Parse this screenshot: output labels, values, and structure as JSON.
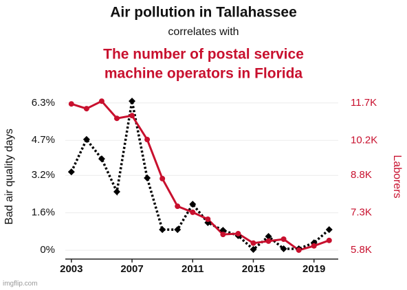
{
  "chart_data": {
    "type": "line",
    "title": "Air pollution in Tallahassee",
    "subtitle": "correlates with",
    "title2": [
      "The number of postal service",
      "machine operators in Florida"
    ],
    "ylabel": "Bad air quality days",
    "y2label": "Laborers",
    "watermark": "imgflip.com",
    "x": [
      2003,
      2004,
      2005,
      2006,
      2007,
      2008,
      2009,
      2010,
      2011,
      2012,
      2013,
      2014,
      2015,
      2016,
      2017,
      2018,
      2019,
      2020
    ],
    "xlim": [
      2002.6,
      2020.6
    ],
    "xticks": [
      2003,
      2007,
      2011,
      2015,
      2019
    ],
    "ylim": [
      -0.38,
      6.6
    ],
    "yticks": [
      {
        "value": 0,
        "label": "0%"
      },
      {
        "value": 1.6,
        "label": "1.6%"
      },
      {
        "value": 3.2,
        "label": "3.2%"
      },
      {
        "value": 4.7,
        "label": "4.7%"
      },
      {
        "value": 6.3,
        "label": "6.3%"
      }
    ],
    "y2lim": [
      5440,
      11990
    ],
    "y2ticks": [
      {
        "value": 5800,
        "label": "5.8K"
      },
      {
        "value": 7300,
        "label": "7.3K"
      },
      {
        "value": 8800,
        "label": "8.8K"
      },
      {
        "value": 10200,
        "label": "10.2K"
      },
      {
        "value": 11700,
        "label": "11.7K"
      }
    ],
    "grid": true,
    "series": [
      {
        "color": "#000000",
        "marker": "diamond",
        "dashed": true,
        "values": [
          3.35,
          4.74,
          3.91,
          2.5,
          6.38,
          3.09,
          0.88,
          0.88,
          1.97,
          1.18,
          0.85,
          0.62,
          0.03,
          0.59,
          0.06,
          0.06,
          0.32,
          0.88
        ]
      },
      {
        "color": "#c8102e",
        "marker": "circle",
        "dashed": false,
        "axis": "y2",
        "values": [
          11670,
          11480,
          11780,
          11090,
          11200,
          10240,
          8670,
          7560,
          7320,
          7040,
          6430,
          6460,
          6080,
          6160,
          6240,
          5800,
          5970,
          6190
        ]
      }
    ]
  }
}
